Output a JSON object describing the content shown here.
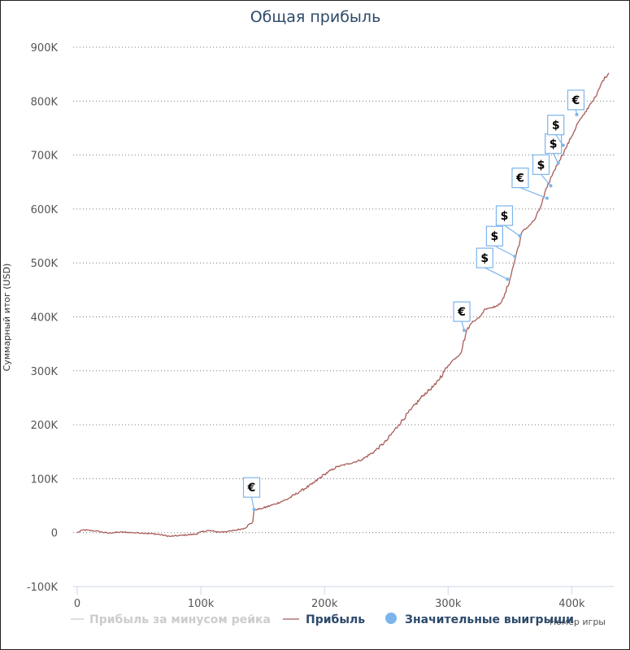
{
  "chart_data": {
    "type": "line",
    "title": "Общая прибыль",
    "xlabel": "Номер игры",
    "ylabel": "Суммарный итог (USD)",
    "xlim": [
      0,
      430000
    ],
    "ylim": [
      -100000,
      900000
    ],
    "x_ticks": [
      0,
      100000,
      200000,
      300000,
      400000
    ],
    "x_tick_labels": [
      "0",
      "100k",
      "200k",
      "300k",
      "400k"
    ],
    "y_ticks": [
      -100000,
      0,
      100000,
      200000,
      300000,
      400000,
      500000,
      600000,
      700000,
      800000,
      900000
    ],
    "y_tick_labels": [
      "-100K",
      "0",
      "100K",
      "200K",
      "300K",
      "400K",
      "500K",
      "600K",
      "700K",
      "800K",
      "900K"
    ],
    "grid": "horizontal dotted",
    "legend_position": "bottom",
    "colors": {
      "profit": "#a85d5a",
      "rake": "#999999",
      "wins": "#7cb5ec",
      "title": "#2d4a6a"
    },
    "series": [
      {
        "name": "Прибыль",
        "x": [
          0,
          5000,
          15000,
          25000,
          35000,
          45000,
          55000,
          65000,
          75000,
          85000,
          95000,
          105000,
          115000,
          125000,
          135000,
          142000,
          143000,
          150000,
          160000,
          170000,
          180000,
          190000,
          200000,
          210000,
          220000,
          230000,
          240000,
          250000,
          260000,
          270000,
          280000,
          290000,
          300000,
          305000,
          310000,
          315000,
          320000,
          325000,
          330000,
          340000,
          345000,
          350000,
          355000,
          360000,
          365000,
          370000,
          375000,
          380000,
          385000,
          390000,
          395000,
          400000,
          405000,
          410000,
          415000,
          420000,
          425000,
          430000
        ],
        "y": [
          0,
          5000,
          3000,
          -1000,
          1000,
          0,
          -1000,
          -3000,
          -7000,
          -5000,
          -3000,
          4000,
          1000,
          3000,
          8000,
          20000,
          42000,
          45000,
          53000,
          62000,
          76000,
          90000,
          108000,
          122000,
          128000,
          135000,
          150000,
          170000,
          200000,
          228000,
          255000,
          275000,
          310000,
          322000,
          332000,
          375000,
          392000,
          398000,
          415000,
          420000,
          435000,
          470000,
          515000,
          558000,
          568000,
          580000,
          605000,
          640000,
          668000,
          690000,
          712000,
          735000,
          760000,
          775000,
          795000,
          810000,
          838000,
          852000
        ]
      },
      {
        "name": "Прибыль за минусом рейка",
        "hidden": true
      }
    ],
    "big_wins": [
      {
        "symbol": "€",
        "x": 143000,
        "y": 43000
      },
      {
        "symbol": "€",
        "x": 313000,
        "y": 375000
      },
      {
        "symbol": "$",
        "x": 348000,
        "y": 470000
      },
      {
        "symbol": "$",
        "x": 354000,
        "y": 512000
      },
      {
        "symbol": "$",
        "x": 358000,
        "y": 550000
      },
      {
        "symbol": "€",
        "x": 380000,
        "y": 620000
      },
      {
        "symbol": "$",
        "x": 383000,
        "y": 643000
      },
      {
        "symbol": "$",
        "x": 389000,
        "y": 685000
      },
      {
        "symbol": "$",
        "x": 393000,
        "y": 718000
      },
      {
        "symbol": "€",
        "x": 404000,
        "y": 775000
      }
    ],
    "legend": [
      "Прибыль за минусом рейка",
      "Прибыль",
      "Значительные выигрыши"
    ]
  }
}
